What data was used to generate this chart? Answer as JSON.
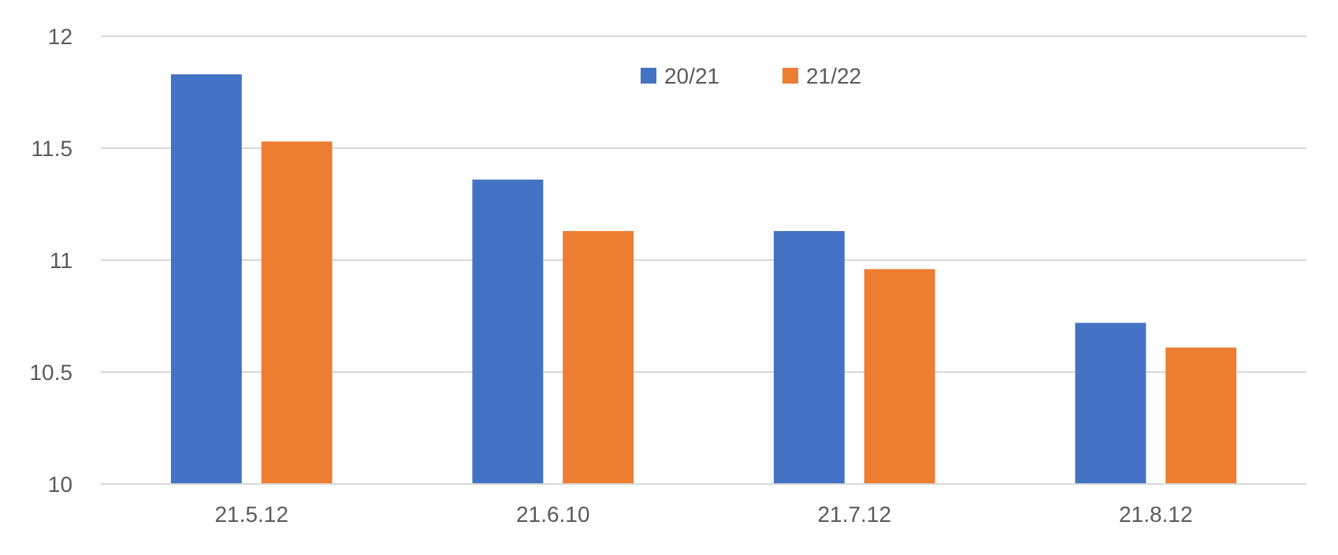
{
  "chart_data": {
    "type": "bar",
    "categories": [
      "21.5.12",
      "21.6.10",
      "21.7.12",
      "21.8.12"
    ],
    "series": [
      {
        "name": "20/21",
        "color": "#4472c4",
        "values": [
          11.83,
          11.36,
          11.13,
          10.72
        ]
      },
      {
        "name": "21/22",
        "color": "#ed7d31",
        "values": [
          11.53,
          11.13,
          10.96,
          10.61
        ]
      }
    ],
    "ylim": [
      10,
      12
    ],
    "yticks": [
      10,
      10.5,
      11,
      11.5,
      12
    ],
    "grid": "y",
    "legend": "top"
  }
}
